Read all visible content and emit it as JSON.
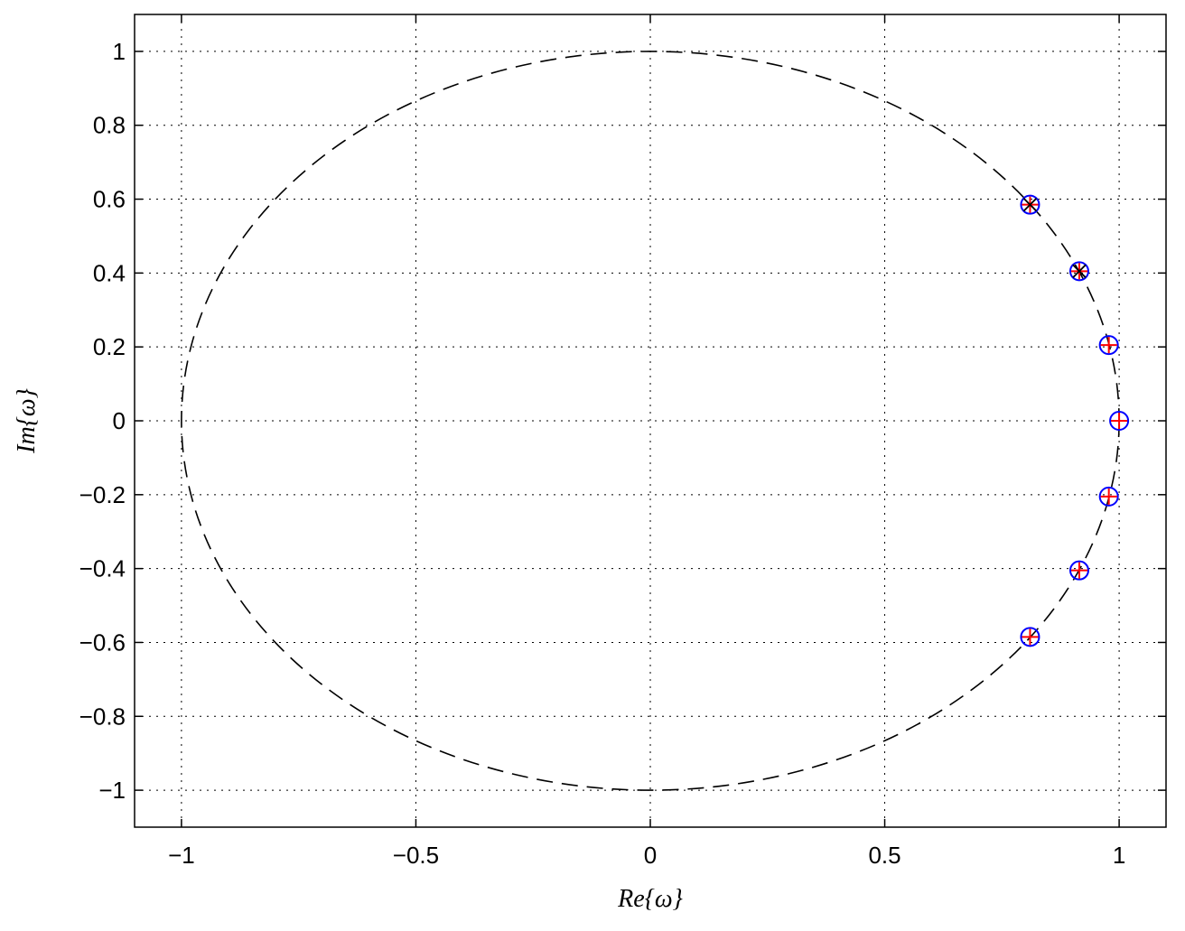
{
  "chart_data": {
    "type": "scatter",
    "title": "",
    "xlabel": "Re{ω}",
    "ylabel": "Im{ω}",
    "xlim": [
      -1.1,
      1.1
    ],
    "ylim": [
      -1.1,
      1.1
    ],
    "grid": true,
    "x_ticks": [
      -1,
      -0.5,
      0,
      0.5,
      1
    ],
    "x_tick_labels": [
      "−1",
      "−0.5",
      "0",
      "0.5",
      "1"
    ],
    "y_ticks": [
      1,
      0.8,
      0.6,
      0.4,
      0.2,
      0,
      -0.2,
      -0.4,
      -0.6,
      -0.8,
      -1
    ],
    "y_tick_labels": [
      "1",
      "0.8",
      "0.6",
      "0.4",
      "0.2",
      "0",
      "−0.2",
      "−0.4",
      "−0.6",
      "−0.8",
      "−1"
    ],
    "reference_curve": {
      "shape": "unit-circle",
      "line_style": "dashed",
      "color": "#000000"
    },
    "series": [
      {
        "marker": "o",
        "color": "#0000ff",
        "points": [
          [
            0.81,
            0.585
          ],
          [
            0.915,
            0.405
          ],
          [
            0.978,
            0.205
          ],
          [
            1.0,
            0.0
          ],
          [
            0.978,
            -0.205
          ],
          [
            0.915,
            -0.405
          ],
          [
            0.81,
            -0.585
          ]
        ]
      },
      {
        "marker": "+",
        "color": "#ff0000",
        "points": [
          [
            0.81,
            0.585
          ],
          [
            0.915,
            0.405
          ],
          [
            0.978,
            0.205
          ],
          [
            1.0,
            0.0
          ],
          [
            0.978,
            -0.205
          ],
          [
            0.915,
            -0.405
          ],
          [
            0.81,
            -0.585
          ]
        ]
      },
      {
        "marker": "x",
        "color": "#000000",
        "points": [
          [
            0.81,
            0.585
          ],
          [
            0.915,
            0.405
          ]
        ]
      }
    ]
  }
}
